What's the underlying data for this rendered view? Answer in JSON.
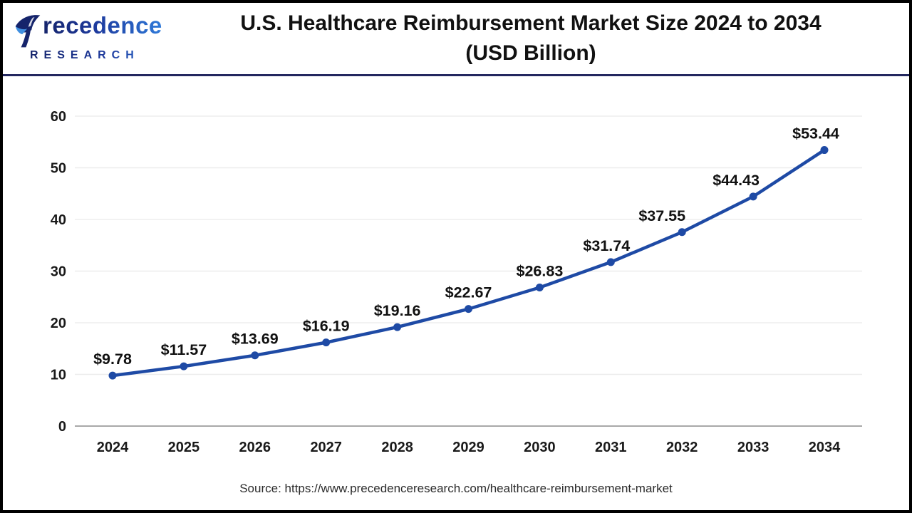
{
  "logo": {
    "name": "Precedence Research",
    "wordmark_tail": "recedence",
    "research_label": "RESEARCH",
    "navy": "#15246b",
    "blue": "#2f7ad9"
  },
  "header": {
    "title_line1": "U.S. Healthcare Reimbursement Market Size 2024 to 2034",
    "title_line2": "(USD Billion)"
  },
  "footer": {
    "source": "Source: https://www.precedenceresearch.com/healthcare-reimbursement-market"
  },
  "theme": {
    "separator_color": "#23275f",
    "frame_border_color": "#000000",
    "line_color": "#1e4aa5",
    "grid_color": "#ededed",
    "zero_line_color": "#a9a9a9",
    "label_color": "#111111",
    "tick_color": "#1a1a1a"
  },
  "chart_data": {
    "type": "line",
    "title": "U.S. Healthcare Reimbursement Market Size 2024 to 2034 (USD Billion)",
    "categories": [
      "2024",
      "2025",
      "2026",
      "2027",
      "2028",
      "2029",
      "2030",
      "2031",
      "2032",
      "2033",
      "2034"
    ],
    "series": [
      {
        "name": "U.S. Healthcare Reimbursement Market Size (USD Billion)",
        "values": [
          9.78,
          11.57,
          13.69,
          16.19,
          19.16,
          22.67,
          26.83,
          31.74,
          37.55,
          44.43,
          53.44
        ]
      }
    ],
    "value_prefix": "$",
    "data_labels": true,
    "ylim": [
      0,
      60
    ],
    "yticks": [
      0,
      10,
      20,
      30,
      40,
      50,
      60
    ],
    "grid": true,
    "legend": false,
    "marker": "circle",
    "layout_hints": {
      "label_dx": [
        0,
        0,
        0,
        0,
        0,
        0,
        0,
        -6,
        -28,
        -24,
        -12
      ],
      "label_dy": -16
    }
  }
}
